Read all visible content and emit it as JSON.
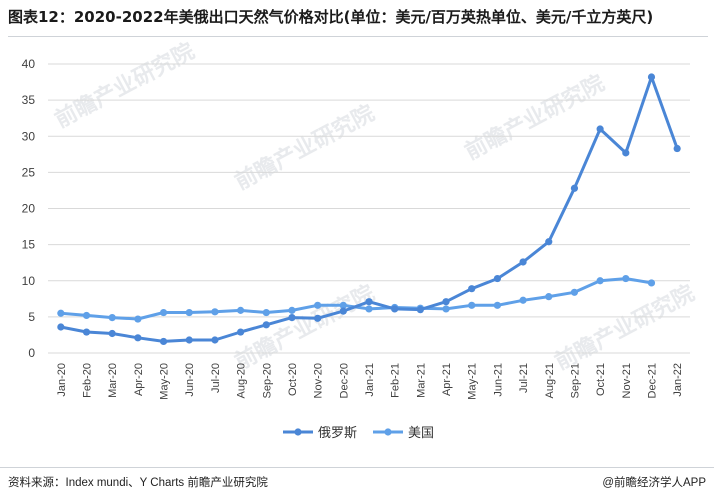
{
  "title": "图表12：2020-2022年美俄出口天然气价格对比(单位：美元/百万英热单位、美元/千立方英尺)",
  "source": "资料来源：Index mundi、Y Charts 前瞻产业研究院",
  "brand": "@前瞻经济学人APP",
  "watermark": "前瞻产业研究院",
  "colors": {
    "russia": "#4a86d6",
    "usa": "#5fa0e8",
    "grid": "#d9d9d9",
    "axis_text": "#404040"
  },
  "chart_data": {
    "type": "line",
    "categories": [
      "Jan-20",
      "Feb-20",
      "Mar-20",
      "Apr-20",
      "May-20",
      "Jun-20",
      "Jul-20",
      "Aug-20",
      "Sep-20",
      "Oct-20",
      "Nov-20",
      "Dec-20",
      "Jan-21",
      "Feb-21",
      "Mar-21",
      "Apr-21",
      "May-21",
      "Jun-21",
      "Jul-21",
      "Aug-21",
      "Sep-21",
      "Oct-21",
      "Nov-21",
      "Dec-21",
      "Jan-22"
    ],
    "ylim": [
      0,
      40
    ],
    "yticks": [
      0,
      5,
      10,
      15,
      20,
      25,
      30,
      35,
      40
    ],
    "grid": true,
    "legend_position": "bottom",
    "series": [
      {
        "name": "俄罗斯",
        "values": [
          3.6,
          2.9,
          2.7,
          2.1,
          1.6,
          1.8,
          1.8,
          2.9,
          3.9,
          4.9,
          4.8,
          5.8,
          7.1,
          6.1,
          6.0,
          7.1,
          8.9,
          10.3,
          12.6,
          15.4,
          22.8,
          31.0,
          27.7,
          38.2,
          28.3
        ]
      },
      {
        "name": "美国",
        "values": [
          5.5,
          5.2,
          4.9,
          4.7,
          5.6,
          5.6,
          5.7,
          5.9,
          5.6,
          5.9,
          6.6,
          6.6,
          6.1,
          6.3,
          6.2,
          6.1,
          6.6,
          6.6,
          7.3,
          7.8,
          8.4,
          10.0,
          10.3,
          9.7,
          null
        ]
      }
    ]
  }
}
